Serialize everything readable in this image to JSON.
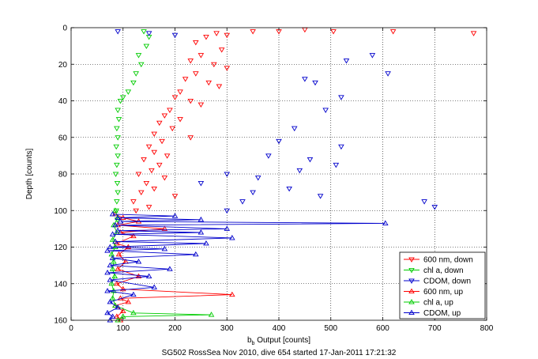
{
  "chart_data": {
    "type": "scatter",
    "title": "SG502 RossSea Nov 2010, dive 654 started 17-Jan-2011 17:21:32",
    "xlabel_main": "b",
    "xlabel_sub": "b",
    "xlabel_rest": " Output [counts]",
    "ylabel": "Depth [counts]",
    "xlim": [
      0,
      800
    ],
    "ylim": [
      160,
      0
    ],
    "y_reversed": true,
    "grid": true,
    "legend_position": "bottom-right",
    "xticks": [
      "0",
      "100",
      "200",
      "300",
      "400",
      "500",
      "600",
      "700",
      "800"
    ],
    "yticks": [
      "0",
      "20",
      "40",
      "60",
      "80",
      "100",
      "120",
      "140",
      "160"
    ],
    "series": [
      {
        "name": "600 nm, down",
        "color": "#ff0000",
        "marker": "tri-down",
        "kind": "points",
        "points": [
          [
            775,
            3
          ],
          [
            620,
            2
          ],
          [
            505,
            2
          ],
          [
            450,
            1
          ],
          [
            400,
            2
          ],
          [
            350,
            2
          ],
          [
            300,
            4
          ],
          [
            280,
            3
          ],
          [
            260,
            5
          ],
          [
            240,
            8
          ],
          [
            290,
            12
          ],
          [
            250,
            15
          ],
          [
            230,
            18
          ],
          [
            275,
            20
          ],
          [
            300,
            22
          ],
          [
            240,
            25
          ],
          [
            220,
            28
          ],
          [
            265,
            30
          ],
          [
            285,
            32
          ],
          [
            210,
            35
          ],
          [
            200,
            38
          ],
          [
            230,
            40
          ],
          [
            250,
            42
          ],
          [
            190,
            45
          ],
          [
            180,
            48
          ],
          [
            210,
            50
          ],
          [
            170,
            52
          ],
          [
            195,
            55
          ],
          [
            160,
            58
          ],
          [
            230,
            60
          ],
          [
            175,
            62
          ],
          [
            150,
            65
          ],
          [
            160,
            68
          ],
          [
            185,
            70
          ],
          [
            140,
            72
          ],
          [
            170,
            75
          ],
          [
            155,
            78
          ],
          [
            130,
            80
          ],
          [
            180,
            82
          ],
          [
            145,
            85
          ],
          [
            160,
            88
          ],
          [
            135,
            90
          ],
          [
            200,
            92
          ],
          [
            120,
            95
          ],
          [
            150,
            98
          ],
          [
            125,
            100
          ]
        ]
      },
      {
        "name": "chl a, down",
        "color": "#00cc00",
        "marker": "tri-down",
        "kind": "points",
        "points": [
          [
            140,
            2
          ],
          [
            150,
            5
          ],
          [
            145,
            10
          ],
          [
            130,
            15
          ],
          [
            135,
            20
          ],
          [
            125,
            25
          ],
          [
            120,
            30
          ],
          [
            110,
            35
          ],
          [
            100,
            38
          ],
          [
            95,
            40
          ],
          [
            90,
            45
          ],
          [
            92,
            50
          ],
          [
            88,
            55
          ],
          [
            90,
            60
          ],
          [
            87,
            65
          ],
          [
            90,
            70
          ],
          [
            88,
            75
          ],
          [
            86,
            80
          ],
          [
            89,
            85
          ],
          [
            90,
            90
          ],
          [
            88,
            95
          ],
          [
            87,
            100
          ],
          [
            89,
            105
          ]
        ]
      },
      {
        "name": "CDOM, down",
        "color": "#0000cc",
        "marker": "tri-down",
        "kind": "points",
        "points": [
          [
            90,
            2
          ],
          [
            150,
            3
          ],
          [
            200,
            4
          ],
          [
            580,
            15
          ],
          [
            530,
            18
          ],
          [
            610,
            25
          ],
          [
            450,
            28
          ],
          [
            470,
            30
          ],
          [
            520,
            38
          ],
          [
            490,
            45
          ],
          [
            430,
            55
          ],
          [
            400,
            62
          ],
          [
            520,
            65
          ],
          [
            380,
            70
          ],
          [
            460,
            72
          ],
          [
            510,
            75
          ],
          [
            440,
            78
          ],
          [
            360,
            82
          ],
          [
            420,
            88
          ],
          [
            480,
            92
          ],
          [
            330,
            95
          ],
          [
            700,
            98
          ],
          [
            680,
            95
          ],
          [
            300,
            100
          ],
          [
            350,
            90
          ],
          [
            250,
            85
          ],
          [
            300,
            80
          ]
        ]
      },
      {
        "name": "600 nm, up",
        "color": "#ff0000",
        "marker": "tri-up",
        "kind": "line",
        "points": [
          [
            85,
            102
          ],
          [
            100,
            104
          ],
          [
            130,
            106
          ],
          [
            90,
            108
          ],
          [
            180,
            110
          ],
          [
            95,
            112
          ],
          [
            120,
            114
          ],
          [
            88,
            118
          ],
          [
            110,
            120
          ],
          [
            92,
            124
          ],
          [
            105,
            128
          ],
          [
            90,
            132
          ],
          [
            130,
            136
          ],
          [
            88,
            140
          ],
          [
            100,
            143
          ],
          [
            310,
            146
          ],
          [
            95,
            148
          ],
          [
            110,
            150
          ],
          [
            85,
            152
          ],
          [
            100,
            155
          ],
          [
            88,
            158
          ],
          [
            95,
            160
          ]
        ]
      },
      {
        "name": "chl a, up",
        "color": "#00cc00",
        "marker": "tri-up",
        "kind": "line",
        "points": [
          [
            85,
            100
          ],
          [
            90,
            104
          ],
          [
            82,
            108
          ],
          [
            88,
            112
          ],
          [
            80,
            116
          ],
          [
            85,
            120
          ],
          [
            78,
            124
          ],
          [
            82,
            128
          ],
          [
            80,
            132
          ],
          [
            84,
            136
          ],
          [
            78,
            140
          ],
          [
            82,
            144
          ],
          [
            80,
            148
          ],
          [
            85,
            152
          ],
          [
            120,
            156
          ],
          [
            270,
            157
          ],
          [
            100,
            158
          ],
          [
            90,
            160
          ]
        ]
      },
      {
        "name": "CDOM, up",
        "color": "#0000cc",
        "marker": "tri-up",
        "kind": "line",
        "points": [
          [
            80,
            102
          ],
          [
            200,
            103
          ],
          [
            90,
            104
          ],
          [
            250,
            105
          ],
          [
            95,
            106
          ],
          [
            605,
            107
          ],
          [
            85,
            108
          ],
          [
            300,
            110
          ],
          [
            90,
            111
          ],
          [
            250,
            112
          ],
          [
            80,
            113
          ],
          [
            310,
            115
          ],
          [
            85,
            117
          ],
          [
            260,
            118
          ],
          [
            75,
            120
          ],
          [
            180,
            121
          ],
          [
            70,
            122
          ],
          [
            240,
            124
          ],
          [
            80,
            126
          ],
          [
            130,
            128
          ],
          [
            75,
            130
          ],
          [
            190,
            132
          ],
          [
            70,
            134
          ],
          [
            150,
            136
          ],
          [
            75,
            138
          ],
          [
            160,
            142
          ],
          [
            70,
            144
          ],
          [
            120,
            146
          ],
          [
            75,
            150
          ],
          [
            90,
            153
          ],
          [
            70,
            156
          ],
          [
            80,
            158
          ],
          [
            75,
            160
          ]
        ]
      }
    ]
  }
}
